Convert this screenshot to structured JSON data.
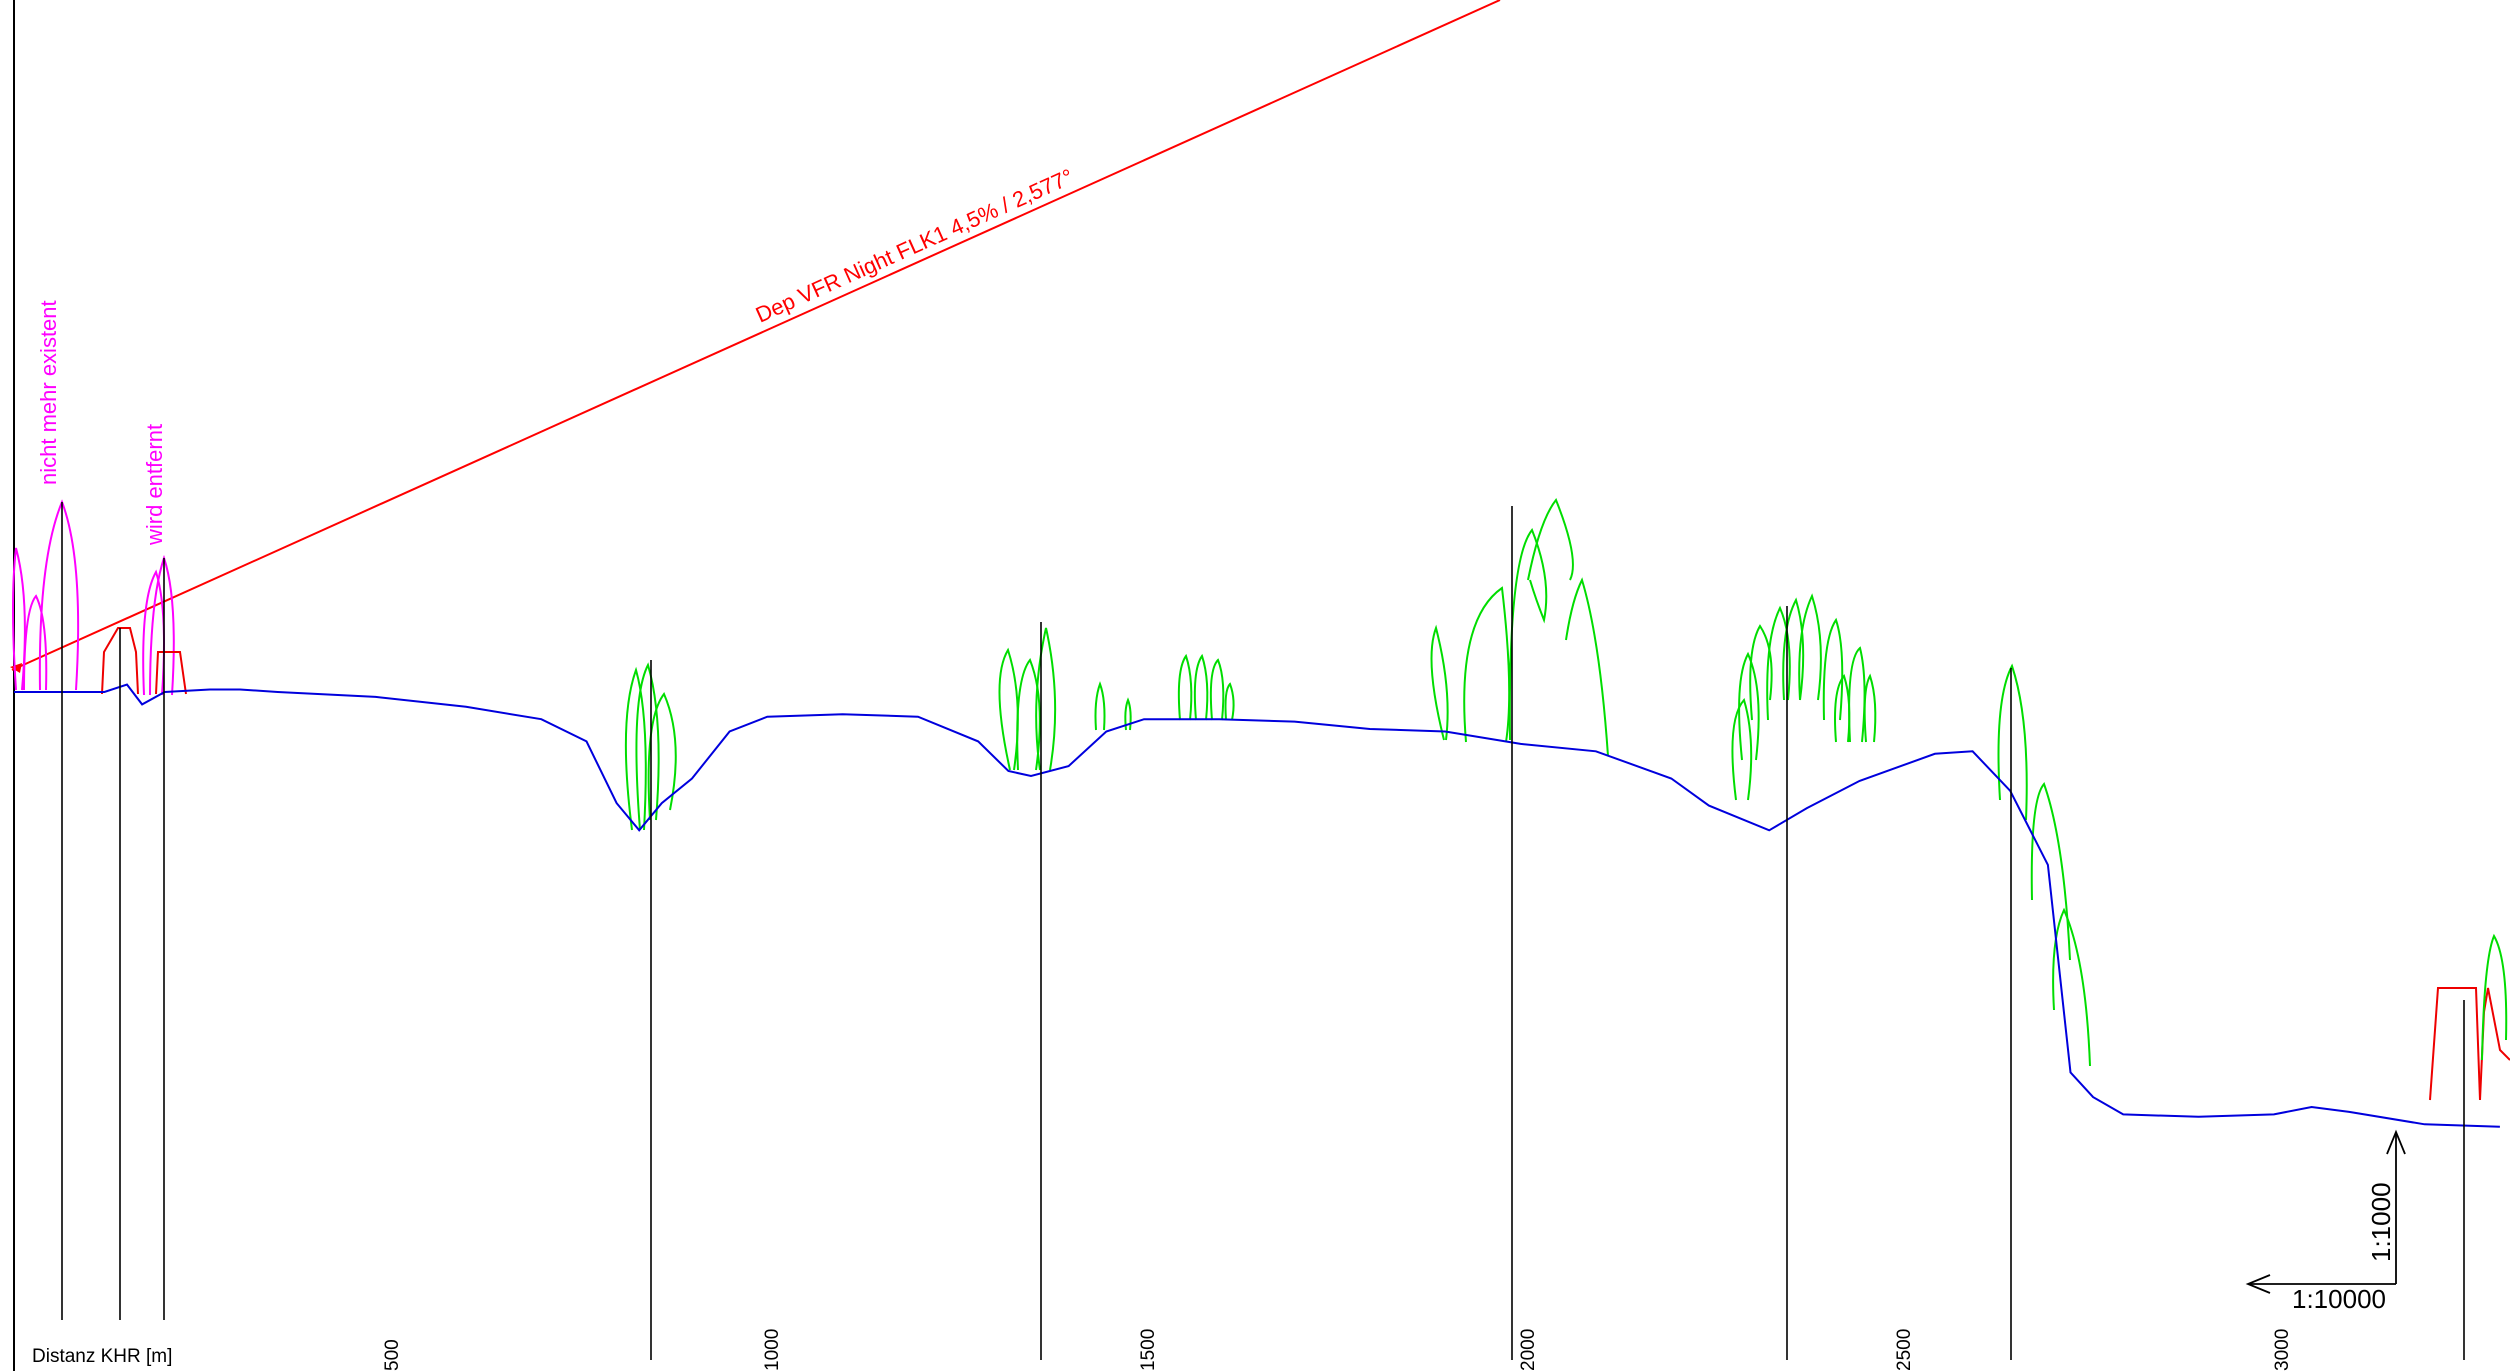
{
  "chart_data": {
    "type": "line",
    "xlabel": "Distanz KHR [m]",
    "x_ticks": [
      "500",
      "1000",
      "1500",
      "2000",
      "2500",
      "3000"
    ],
    "slope_label": "Dep VFR Night FLK1 4,5% / 2,577°",
    "annotations": [
      "nicht mehr existent",
      "wird entfernt"
    ],
    "scale_vertical": "1:1000",
    "scale_horizontal": "1:10000",
    "terrain": [
      [
        0,
        0
      ],
      [
        60,
        0
      ],
      [
        120,
        0
      ],
      [
        150,
        3
      ],
      [
        170,
        -5
      ],
      [
        200,
        0
      ],
      [
        260,
        1
      ],
      [
        300,
        1
      ],
      [
        350,
        0
      ],
      [
        480,
        -2
      ],
      [
        600,
        -6
      ],
      [
        700,
        -11
      ],
      [
        760,
        -20
      ],
      [
        800,
        -45
      ],
      [
        830,
        -56
      ],
      [
        860,
        -45
      ],
      [
        900,
        -35
      ],
      [
        950,
        -16
      ],
      [
        1000,
        -10
      ],
      [
        1100,
        -9
      ],
      [
        1200,
        -10
      ],
      [
        1280,
        -20
      ],
      [
        1320,
        -32
      ],
      [
        1350,
        -34
      ],
      [
        1400,
        -30
      ],
      [
        1450,
        -16
      ],
      [
        1500,
        -11
      ],
      [
        1600,
        -11
      ],
      [
        1700,
        -12
      ],
      [
        1800,
        -15
      ],
      [
        1900,
        -16
      ],
      [
        2000,
        -21
      ],
      [
        2100,
        -24
      ],
      [
        2200,
        -35
      ],
      [
        2250,
        -46
      ],
      [
        2330,
        -56
      ],
      [
        2380,
        -47
      ],
      [
        2450,
        -36
      ],
      [
        2550,
        -25
      ],
      [
        2600,
        -24
      ],
      [
        2650,
        -40
      ],
      [
        2700,
        -70
      ],
      [
        2730,
        -154
      ],
      [
        2760,
        -164
      ],
      [
        2800,
        -171
      ],
      [
        2900,
        -172
      ],
      [
        3000,
        -171
      ],
      [
        3050,
        -168
      ],
      [
        3100,
        -170
      ],
      [
        3200,
        -175
      ],
      [
        3300,
        -176
      ]
    ],
    "colors": {
      "terrain": "#0000dd",
      "slope": "#ff0000",
      "trees": "#00dd00",
      "buildings": "#ee0000",
      "removed": "#ff00ff",
      "axis": "#000000"
    }
  }
}
